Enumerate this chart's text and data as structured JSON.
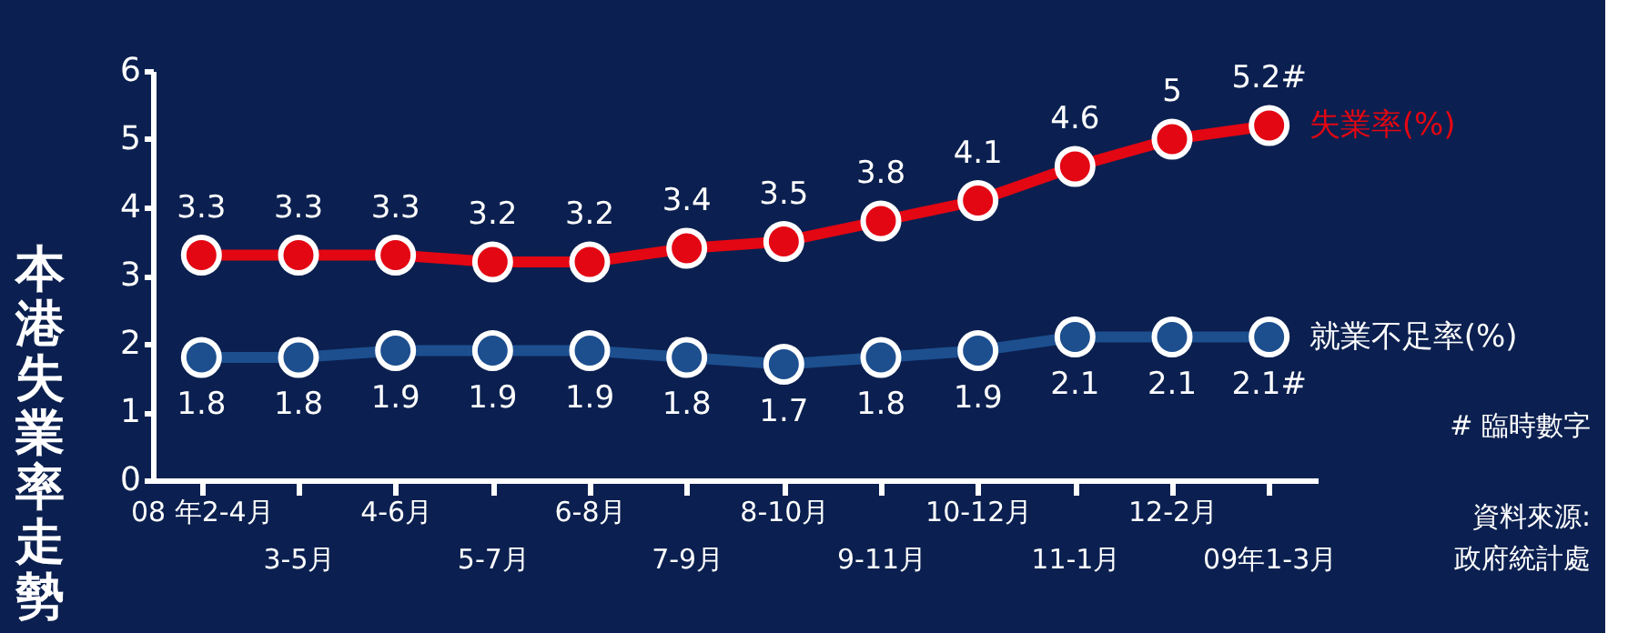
{
  "chart_data": {
    "type": "line",
    "title": "本港失業率走勢",
    "categories": [
      "08 年2-4月",
      "3-5月",
      "4-6月",
      "5-7月",
      "6-8月",
      "7-9月",
      "8-10月",
      "9-11月",
      "10-12月",
      "11-1月",
      "12-2月",
      "09年1-3月"
    ],
    "series": [
      {
        "name": "失業率(%)",
        "color": "#e30613",
        "values": [
          3.3,
          3.3,
          3.3,
          3.2,
          3.2,
          3.4,
          3.5,
          3.8,
          4.1,
          4.6,
          5,
          5.2
        ],
        "value_labels": [
          "3.3",
          "3.3",
          "3.3",
          "3.2",
          "3.2",
          "3.4",
          "3.5",
          "3.8",
          "4.1",
          "4.6",
          "5",
          "5.2#"
        ]
      },
      {
        "name": "就業不足率(%)",
        "color": "#1d4f8f",
        "values": [
          1.8,
          1.8,
          1.9,
          1.9,
          1.9,
          1.8,
          1.7,
          1.8,
          1.9,
          2.1,
          2.1,
          2.1
        ],
        "value_labels": [
          "1.8",
          "1.8",
          "1.9",
          "1.9",
          "1.9",
          "1.8",
          "1.7",
          "1.8",
          "1.9",
          "2.1",
          "2.1",
          "2.1#"
        ]
      }
    ],
    "ylim": [
      0,
      6
    ],
    "yticks": [
      0,
      1,
      2,
      3,
      4,
      5,
      6
    ],
    "grid": false,
    "legend": false,
    "marker": "circle",
    "line_style": "solid",
    "annotations": [
      "# 臨時數字",
      "資料來源:",
      "政府統計處"
    ]
  }
}
